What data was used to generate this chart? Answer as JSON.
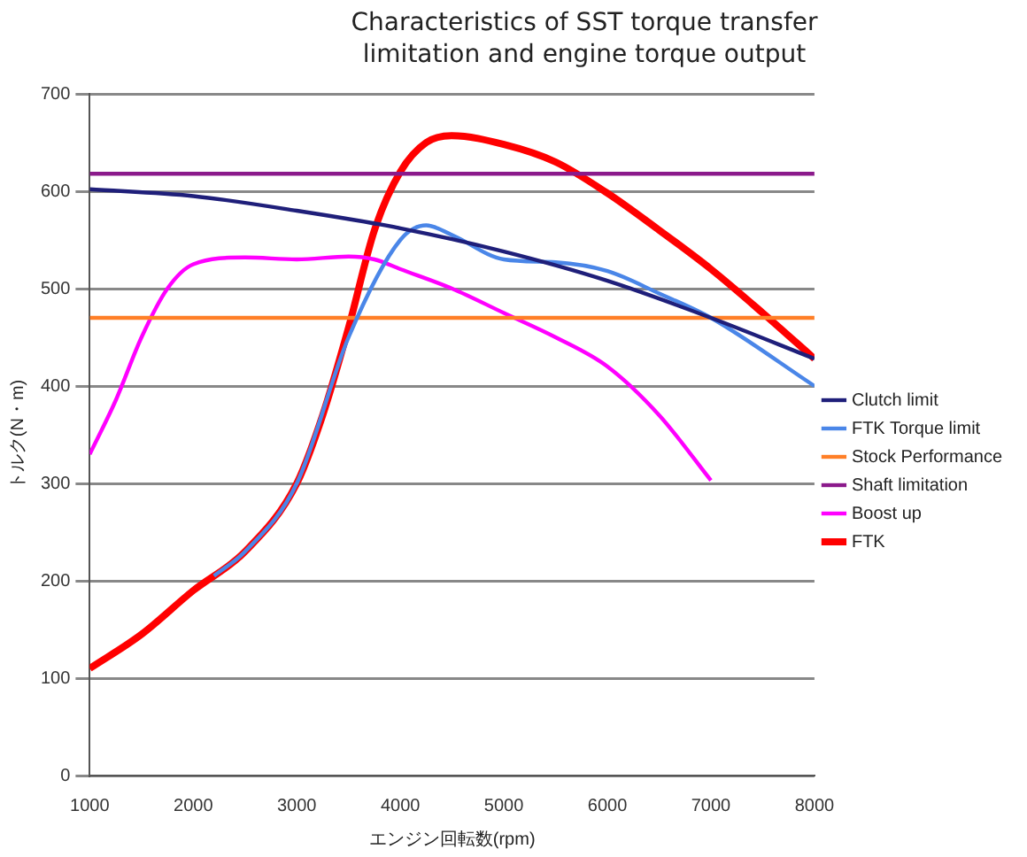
{
  "chart_data": {
    "type": "line",
    "title": "Characteristics of SST torque transfer limitation and engine torque output",
    "xlabel": "エンジン回転数(rpm)",
    "ylabel": "トルク(N・m)",
    "xlim": [
      1000,
      8000
    ],
    "xticks": [
      1000,
      2000,
      3000,
      4000,
      5000,
      6000,
      7000,
      8000
    ],
    "ylim": [
      0,
      700
    ],
    "yticks": [
      0,
      100,
      200,
      300,
      400,
      500,
      600,
      700
    ],
    "grid": "y",
    "legend": "right",
    "marker": "none",
    "line_style": "solid",
    "series": [
      {
        "name": "Clutch limit",
        "color": "#1f1f7a",
        "x": [
          1000,
          2000,
          3000,
          4000,
          5000,
          6000,
          7000,
          8000
        ],
        "values": [
          602,
          595,
          580,
          562,
          538,
          508,
          470,
          428
        ]
      },
      {
        "name": "FTK Torque limit",
        "color": "#4a86e8",
        "x": [
          2200,
          2500,
          3000,
          3500,
          4000,
          4250,
          4500,
          5000,
          5500,
          6000,
          6500,
          7000,
          8000
        ],
        "values": [
          205,
          230,
          300,
          450,
          550,
          565,
          555,
          530,
          527,
          518,
          495,
          470,
          400
        ]
      },
      {
        "name": "Stock Performance",
        "color": "#ff7f27",
        "x": [
          1000,
          8000
        ],
        "values": [
          470,
          470
        ]
      },
      {
        "name": "Shaft limitation",
        "color": "#8b1a8b",
        "x": [
          1000,
          8000
        ],
        "values": [
          618,
          618
        ]
      },
      {
        "name": "Boost up",
        "color": "#ff00ff",
        "x": [
          1000,
          1250,
          1500,
          1750,
          2000,
          2500,
          3000,
          3500,
          3750,
          4000,
          4500,
          5000,
          5500,
          6000,
          6500,
          7000
        ],
        "values": [
          330,
          385,
          450,
          500,
          525,
          532,
          530,
          533,
          530,
          520,
          500,
          475,
          450,
          420,
          370,
          303
        ]
      },
      {
        "name": "FTK",
        "color": "#ff0000",
        "x": [
          1000,
          1500,
          2000,
          2500,
          3000,
          3250,
          3500,
          3750,
          4000,
          4250,
          4500,
          5000,
          5500,
          6000,
          6500,
          7000,
          7500,
          8000
        ],
        "values": [
          110,
          145,
          190,
          230,
          300,
          370,
          460,
          560,
          620,
          650,
          657,
          648,
          630,
          598,
          560,
          520,
          475,
          428
        ]
      }
    ]
  }
}
